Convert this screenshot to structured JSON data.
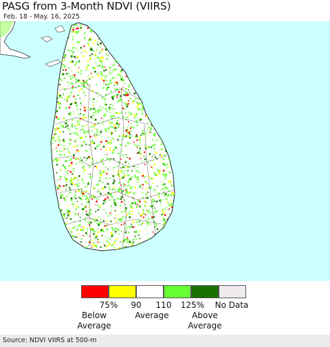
{
  "title": "PASG from 3-Month NDVI (VIIRS)",
  "subtitle": "Feb. 18 - May. 16, 2025",
  "map": {
    "ocean_color": "#ccffff",
    "land_color": "#ffffff",
    "land_speckle_colors": [
      "#66ff33",
      "#1a7a00",
      "#ffff00",
      "#ff0000"
    ]
  },
  "legend": {
    "colors": [
      "#ff0000",
      "#ffff00",
      "#ffffff",
      "#66ff33",
      "#1a7000",
      "#eeeaee"
    ],
    "tick_labels": [
      "75%",
      "90",
      "110",
      "125%",
      "No Data"
    ],
    "below_label": "Below\nAverage",
    "average_label": "Average",
    "above_label": "Above\nAverage"
  },
  "source": "Source: NDVI VIIRS at 500-m"
}
